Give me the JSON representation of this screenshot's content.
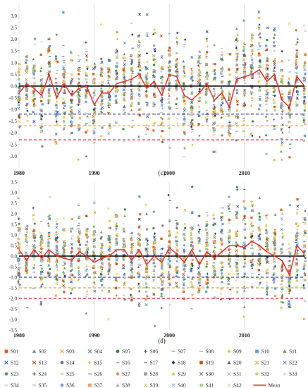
{
  "colors": {
    "zero_line": "#000000",
    "mean_line": "#e03030",
    "threshold_1": "#3a3ab0",
    "threshold_2": "#e8a040",
    "threshold_3": "#d42020",
    "grid": "#d0d0d0"
  },
  "legend": {
    "stations": [
      {
        "label": "S01",
        "marker": "square",
        "color": "#e05a1e"
      },
      {
        "label": "S02",
        "marker": "triangle",
        "color": "#808080"
      },
      {
        "label": "S03",
        "marker": "x",
        "color": "#f0a030"
      },
      {
        "label": "S04",
        "marker": "x",
        "color": "#4a78c0"
      },
      {
        "label": "S05",
        "marker": "circle",
        "color": "#3a8a3a"
      },
      {
        "label": "S06",
        "marker": "plus",
        "color": "#2a4a80"
      },
      {
        "label": "S07",
        "marker": "dash",
        "color": "#e07a40"
      },
      {
        "label": "S08",
        "marker": "dash",
        "color": "#999999"
      },
      {
        "label": "S09",
        "marker": "diamond",
        "color": "#f0c030"
      },
      {
        "label": "S10",
        "marker": "square",
        "color": "#5aa0d8"
      },
      {
        "label": "S11",
        "marker": "triangle",
        "color": "#5a9a3a"
      },
      {
        "label": "S12",
        "marker": "x",
        "color": "#2a5aa0"
      },
      {
        "label": "S13",
        "marker": "x",
        "color": "#c05020"
      },
      {
        "label": "S14",
        "marker": "circle",
        "color": "#7a7a7a"
      },
      {
        "label": "S15",
        "marker": "plus",
        "color": "#e8b020"
      },
      {
        "label": "S16",
        "marker": "dash",
        "color": "#5a80c8"
      },
      {
        "label": "S17",
        "marker": "dash",
        "color": "#3a6a9a"
      },
      {
        "label": "S18",
        "marker": "diamond",
        "color": "#1a3a70"
      },
      {
        "label": "S19",
        "marker": "square",
        "color": "#c05a1a"
      },
      {
        "label": "S20",
        "marker": "triangle",
        "color": "#707070"
      },
      {
        "label": "S21",
        "marker": "x",
        "color": "#e8b030"
      },
      {
        "label": "S22",
        "marker": "x",
        "color": "#5a8ad0"
      },
      {
        "label": "S23",
        "marker": "circle",
        "color": "#5aa05a"
      },
      {
        "label": "S24",
        "marker": "plus",
        "color": "#a04010"
      },
      {
        "label": "S25",
        "marker": "dash",
        "color": "#d8b050"
      },
      {
        "label": "S26",
        "marker": "dash",
        "color": "#7a9ad0"
      },
      {
        "label": "S27",
        "marker": "diamond",
        "color": "#e08040"
      },
      {
        "label": "S28",
        "marker": "square",
        "color": "#a0a0a0"
      },
      {
        "label": "S29",
        "marker": "triangle",
        "color": "#e8c040"
      },
      {
        "label": "S30",
        "marker": "x",
        "color": "#4a70b0"
      },
      {
        "label": "S31",
        "marker": "x",
        "color": "#90c070"
      },
      {
        "label": "S32",
        "marker": "circle",
        "color": "#e8c870"
      },
      {
        "label": "S33",
        "marker": "plus",
        "color": "#c8c8c8"
      },
      {
        "label": "S34",
        "marker": "dash",
        "color": "#a8c8e8"
      },
      {
        "label": "S35",
        "marker": "dash",
        "color": "#90c890"
      },
      {
        "label": "S36",
        "marker": "diamond",
        "color": "#6a90c8"
      },
      {
        "label": "S37",
        "marker": "square",
        "color": "#f0a060"
      },
      {
        "label": "S38",
        "marker": "triangle",
        "color": "#b0b0b0"
      },
      {
        "label": "S39",
        "marker": "x",
        "color": "#f0d070"
      },
      {
        "label": "S40",
        "marker": "x",
        "color": "#90b0e0"
      },
      {
        "label": "S41",
        "marker": "circle",
        "color": "#a0d080"
      },
      {
        "label": "S42",
        "marker": "plus",
        "color": "#f0c8a0"
      }
    ],
    "mean_label": "Mean"
  },
  "chart_data": [
    {
      "type": "scatter",
      "panel_label": "(c)",
      "ylim": [
        -3.5,
        3.5
      ],
      "yticks": [
        -3.0,
        -2.5,
        -2.0,
        -1.5,
        -1.0,
        -0.5,
        0.0,
        0.5,
        1.0,
        1.5,
        2.0,
        2.5,
        3.0
      ],
      "ytick_labels": [
        "-3.0",
        "-2.5",
        "-2.0",
        "-1.5",
        "-1.0",
        "-0.5",
        "0.0",
        "0.5",
        "1.0",
        "1.5",
        "2.0",
        "2.5",
        "3.0"
      ],
      "xlim": [
        1980,
        2018
      ],
      "xticks": [
        1980,
        1990,
        2000,
        2010
      ],
      "xtick_labels": [
        "1980",
        "1990",
        "2000",
        "2010"
      ],
      "grid": "vertical",
      "thresholds": [
        -1.2,
        -1.7,
        -2.3
      ],
      "years": [
        1980,
        1981,
        1982,
        1983,
        1984,
        1985,
        1986,
        1987,
        1988,
        1989,
        1990,
        1991,
        1992,
        1993,
        1994,
        1995,
        1996,
        1997,
        1998,
        1999,
        2000,
        2001,
        2002,
        2003,
        2004,
        2005,
        2006,
        2007,
        2008,
        2009,
        2010,
        2011,
        2012,
        2013,
        2014,
        2015,
        2016,
        2017,
        2018
      ],
      "mean": [
        -0.3,
        0.1,
        -0.1,
        -0.4,
        0.5,
        -0.5,
        0.1,
        -0.4,
        -0.1,
        0.0,
        -0.8,
        -0.3,
        -0.3,
        0.1,
        0.2,
        0.3,
        0.5,
        -0.1,
        0.2,
        -0.4,
        0.5,
        0.4,
        -0.4,
        -0.6,
        -0.3,
        0.1,
        -0.6,
        -0.3,
        -0.9,
        0.3,
        0.4,
        0.5,
        0.7,
        0.2,
        0.5,
        -0.6,
        -0.9,
        0.4,
        0.0
      ],
      "spread": [
        0.9,
        0.8,
        0.8,
        0.9,
        1.0,
        0.9,
        0.8,
        0.9,
        0.9,
        0.9,
        0.9,
        0.9,
        0.9,
        0.9,
        0.9,
        1.0,
        1.1,
        1.0,
        1.0,
        1.0,
        1.1,
        1.0,
        1.0,
        1.0,
        1.0,
        1.0,
        1.1,
        1.0,
        1.0,
        1.0,
        1.1,
        1.1,
        1.1,
        1.1,
        1.1,
        1.1,
        1.1,
        1.0,
        1.0
      ]
    },
    {
      "type": "scatter",
      "panel_label": "(d)",
      "ylim": [
        -3.5,
        3.5
      ],
      "yticks": [
        -3.5,
        -3.0,
        -2.5,
        -2.0,
        -1.5,
        -1.0,
        -0.5,
        0.0,
        0.5,
        1.0,
        1.5,
        2.0,
        2.5,
        3.0,
        3.5
      ],
      "ytick_labels": [
        "-3.5",
        "-3.0",
        "-2.5",
        "-2.0",
        "-1.5",
        "-1.0",
        "-0.5",
        "0.0",
        "0.5",
        "1.0",
        "1.5",
        "2.0",
        "2.5",
        "3.0",
        "3.5"
      ],
      "xlim": [
        1980,
        2018
      ],
      "xticks": [
        1980,
        1990,
        2000,
        2010
      ],
      "xtick_labels": [
        "1980",
        "1990",
        "2000",
        "2010"
      ],
      "grid": "vertical",
      "thresholds": [
        -1.0,
        -1.5,
        -2.0
      ],
      "years": [
        1980,
        1981,
        1982,
        1983,
        1984,
        1985,
        1986,
        1987,
        1988,
        1989,
        1990,
        1991,
        1992,
        1993,
        1994,
        1995,
        1996,
        1997,
        1998,
        1999,
        2000,
        2001,
        2002,
        2003,
        2004,
        2005,
        2006,
        2007,
        2008,
        2009,
        2010,
        2011,
        2012,
        2013,
        2014,
        2015,
        2016,
        2017,
        2018
      ],
      "mean": [
        0.3,
        -0.2,
        0.3,
        -0.1,
        0.3,
        0.0,
        -0.1,
        -0.2,
        0.2,
        0.0,
        -0.3,
        -0.1,
        0.0,
        0.3,
        0.3,
        -0.2,
        0.3,
        -0.4,
        0.0,
        -0.3,
        0.4,
        0.1,
        -0.3,
        0.3,
        -0.4,
        0.2,
        -0.1,
        0.2,
        0.5,
        0.5,
        0.4,
        0.7,
        0.5,
        0.2,
        0.0,
        -0.2,
        -0.9,
        0.5,
        0.1
      ],
      "spread": [
        0.9,
        0.9,
        0.9,
        0.9,
        1.0,
        0.9,
        0.9,
        0.9,
        0.9,
        0.9,
        0.9,
        0.9,
        0.9,
        0.9,
        0.9,
        1.0,
        1.0,
        1.0,
        1.0,
        1.0,
        1.0,
        1.0,
        1.0,
        1.0,
        1.0,
        1.0,
        1.0,
        1.0,
        1.0,
        1.1,
        1.1,
        1.1,
        1.1,
        1.0,
        1.0,
        1.0,
        1.0,
        1.0,
        1.0
      ]
    }
  ]
}
